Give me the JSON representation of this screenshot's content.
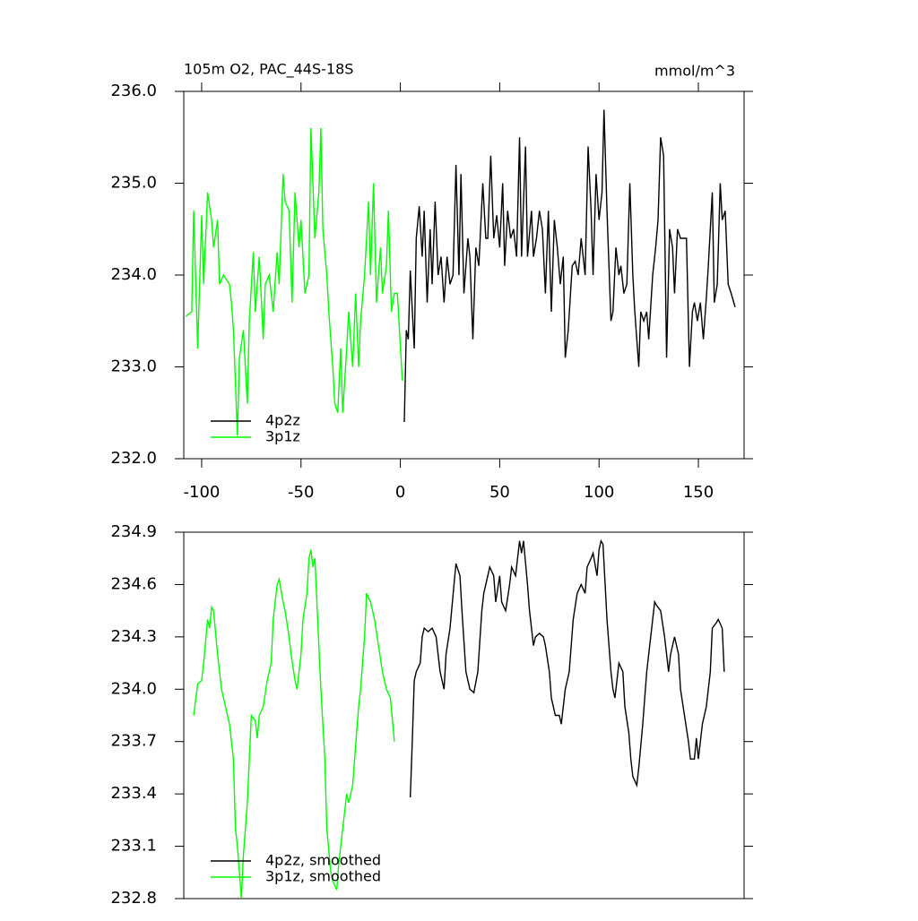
{
  "chart_data": [
    {
      "type": "line",
      "title": "105m O2, PAC_44S-18S",
      "units": "mmol/m^3",
      "xlim": [
        -109,
        173
      ],
      "ylim": [
        232,
        236
      ],
      "xticks": [
        -100,
        -50,
        0,
        50,
        100,
        150
      ],
      "yticks": [
        {
          "value": 232,
          "label": "232.0"
        },
        {
          "value": 233,
          "label": "233.0"
        },
        {
          "value": 234,
          "label": "234.0"
        },
        {
          "value": 235,
          "label": "235.0"
        },
        {
          "value": 236,
          "label": "236.0"
        }
      ],
      "legend": "lower left",
      "series": [
        {
          "name": "4p2z",
          "color": "#000000",
          "x": [
            2,
            3,
            4,
            5,
            7,
            8,
            9.5,
            11,
            12,
            13.5,
            15,
            16,
            17.5,
            19,
            20.5,
            22,
            23.5,
            25,
            26.5,
            28,
            29.5,
            30.5,
            32,
            34,
            35,
            36.5,
            38,
            39.5,
            41.5,
            43,
            44,
            45.5,
            47,
            48.5,
            50,
            51.5,
            52.5,
            54,
            55.5,
            57,
            58.5,
            60,
            61,
            63,
            64,
            66,
            67,
            68.5,
            70,
            71.5,
            73,
            74.5,
            76,
            77.5,
            79,
            80.5,
            82,
            83,
            84.5,
            86.5,
            88,
            89.5,
            91,
            93,
            94.5,
            96,
            97,
            98.5,
            100,
            101.5,
            102.5,
            104,
            106,
            107,
            108.5,
            110,
            111,
            112.5,
            114,
            115.5,
            117,
            118,
            120,
            121,
            122.5,
            124,
            125,
            127,
            128.5,
            129.7,
            131,
            132.5,
            134,
            135.5,
            137,
            138,
            139.5,
            141,
            142.5,
            144,
            145.5,
            147,
            148,
            149.5,
            151,
            152.5,
            154,
            155,
            157,
            158,
            159.5,
            161,
            162,
            163.5,
            165,
            166.5,
            168.5
          ],
          "values": [
            232.4,
            233.4,
            233.3,
            234.05,
            233.2,
            234.4,
            234.75,
            234.2,
            234.7,
            233.7,
            234.5,
            233.9,
            234.8,
            234.0,
            234.2,
            233.7,
            234.2,
            233.9,
            234.0,
            235.2,
            234.0,
            235.1,
            233.8,
            234.4,
            234.2,
            233.3,
            234.3,
            234.1,
            235.0,
            234.4,
            234.4,
            235.3,
            234.4,
            234.65,
            234.3,
            235.0,
            234.1,
            234.7,
            234.4,
            234.5,
            234.2,
            235.5,
            234.2,
            235.4,
            234.2,
            234.7,
            234.2,
            234.4,
            234.7,
            234.5,
            233.8,
            234.7,
            233.6,
            234.6,
            234.3,
            233.9,
            234.2,
            233.1,
            233.4,
            234.1,
            234.15,
            234.0,
            234.4,
            234.0,
            235.4,
            234.7,
            234.0,
            235.1,
            234.6,
            234.9,
            235.8,
            234.7,
            233.5,
            233.6,
            234.3,
            234.0,
            234.1,
            233.8,
            233.9,
            235.0,
            234.0,
            233.6,
            233.0,
            233.6,
            233.5,
            233.6,
            233.3,
            234.0,
            234.3,
            234.6,
            235.5,
            235.3,
            233.1,
            234.5,
            234.3,
            233.8,
            234.5,
            234.4,
            234.4,
            234.4,
            233.0,
            233.6,
            233.7,
            233.5,
            233.7,
            233.3,
            233.75,
            234.1,
            234.9,
            233.7,
            233.9,
            235.0,
            234.6,
            234.7,
            233.9,
            233.8,
            233.65
          ]
        },
        {
          "name": "3p1z",
          "color": "#00ff00",
          "x": [
            -108,
            -105,
            -104,
            -102,
            -100,
            -99,
            -97,
            -95,
            -94,
            -92,
            -91,
            -89,
            -86,
            -85,
            -84,
            -82,
            -81,
            -79,
            -77,
            -76,
            -74,
            -73,
            -71,
            -69,
            -68,
            -66,
            -64,
            -62,
            -61,
            -59,
            -58,
            -56,
            -54.5,
            -53,
            -51,
            -50,
            -48,
            -46,
            -45,
            -43,
            -41,
            -40,
            -39,
            -37,
            -36,
            -34,
            -33,
            -31.5,
            -30,
            -29,
            -27,
            -26,
            -24,
            -22.5,
            -21,
            -20,
            -18,
            -16,
            -15,
            -13.5,
            -12,
            -10,
            -9,
            -7,
            -6,
            -4.5,
            -3,
            -1.5,
            1
          ],
          "values": [
            233.55,
            233.6,
            234.7,
            233.2,
            234.65,
            233.9,
            234.9,
            234.6,
            234.3,
            234.6,
            233.9,
            234.0,
            233.9,
            233.7,
            233.4,
            232.25,
            233.1,
            233.4,
            232.6,
            233.5,
            234.25,
            233.6,
            234.2,
            233.3,
            233.9,
            234.0,
            233.6,
            234.25,
            233.9,
            235.1,
            234.8,
            234.7,
            233.7,
            234.9,
            234.3,
            234.6,
            233.8,
            234.0,
            235.6,
            234.4,
            234.9,
            235.6,
            234.5,
            234.0,
            233.6,
            233.0,
            232.6,
            232.5,
            233.2,
            232.5,
            233.2,
            233.6,
            233.0,
            233.8,
            233.0,
            233.5,
            234.0,
            234.8,
            234.0,
            235.0,
            233.7,
            234.3,
            233.8,
            234.1,
            234.7,
            233.6,
            233.8,
            233.8,
            232.85
          ]
        }
      ]
    },
    {
      "type": "line",
      "xlim": [
        -109,
        173
      ],
      "ylim": [
        232.8,
        234.9
      ],
      "yticks": [
        232.8,
        233.1,
        233.4,
        233.7,
        {
          "value": 234,
          "label": "234.0"
        },
        234.3,
        234.6,
        234.9
      ],
      "legend": "lower left",
      "series": [
        {
          "name": "4p2z, smoothed",
          "color": "#000000",
          "x": [
            5,
            6,
            7,
            8,
            10,
            11,
            12,
            14,
            16,
            18,
            20,
            22,
            23,
            25,
            27,
            28,
            30,
            31,
            33,
            35,
            37,
            39,
            41,
            42,
            44,
            45,
            47,
            48,
            50,
            51,
            53,
            55,
            56,
            58,
            60,
            61,
            62,
            64,
            65,
            67,
            68,
            70,
            72,
            73,
            75,
            76,
            78,
            80,
            81,
            83,
            85,
            87,
            89,
            91,
            93,
            94,
            96,
            97,
            99,
            100,
            101,
            102,
            104,
            106,
            107,
            108,
            110,
            112,
            113,
            115,
            116,
            117,
            119,
            120,
            122,
            124,
            126,
            128,
            129,
            131,
            133,
            135,
            136,
            138,
            140,
            141,
            143,
            145,
            146,
            148,
            149,
            150,
            152,
            154,
            156,
            157,
            159,
            160,
            162,
            163
          ],
          "values": [
            233.38,
            233.7,
            234.05,
            234.1,
            234.15,
            234.3,
            234.35,
            234.33,
            234.35,
            234.3,
            234.1,
            234.0,
            234.2,
            234.35,
            234.6,
            234.72,
            234.65,
            234.45,
            234.1,
            234.0,
            233.98,
            234.1,
            234.45,
            234.55,
            234.65,
            234.7,
            234.65,
            234.5,
            234.65,
            234.5,
            234.45,
            234.6,
            234.7,
            234.65,
            234.85,
            234.78,
            234.85,
            234.6,
            234.45,
            234.25,
            234.3,
            234.32,
            234.3,
            234.25,
            234.1,
            233.95,
            233.85,
            233.85,
            233.8,
            234.0,
            234.1,
            234.4,
            234.55,
            234.6,
            234.55,
            234.7,
            234.75,
            234.78,
            234.65,
            234.8,
            234.85,
            234.83,
            234.4,
            234.1,
            234.0,
            233.95,
            234.15,
            234.1,
            233.9,
            233.75,
            233.6,
            233.5,
            233.45,
            233.55,
            233.8,
            234.1,
            234.3,
            234.5,
            234.48,
            234.45,
            234.3,
            234.1,
            234.2,
            234.3,
            234.2,
            234.0,
            233.85,
            233.7,
            233.6,
            233.6,
            233.72,
            233.6,
            233.8,
            233.9,
            234.1,
            234.35,
            234.38,
            234.4,
            234.35,
            234.1
          ]
        },
        {
          "name": "3p1z, smoothed",
          "color": "#00ff00",
          "x": [
            -104,
            -102,
            -100,
            -99,
            -97,
            -96,
            -95,
            -94,
            -92,
            -90,
            -88,
            -86,
            -84,
            -83,
            -82,
            -80,
            -79,
            -77,
            -76,
            -75,
            -73,
            -72,
            -71,
            -69,
            -67,
            -65,
            -64,
            -62,
            -61,
            -59,
            -58,
            -56,
            -55,
            -53,
            -52,
            -50,
            -49,
            -47,
            -46,
            -45,
            -44,
            -43,
            -42,
            -40,
            -38,
            -37,
            -35,
            -34,
            -32,
            -31,
            -29,
            -27,
            -26,
            -24,
            -23,
            -21,
            -20,
            -18,
            -17,
            -15,
            -13,
            -11,
            -9,
            -7,
            -5,
            -3
          ],
          "values": [
            233.85,
            234.03,
            234.05,
            234.15,
            234.4,
            234.35,
            234.47,
            234.45,
            234.2,
            234.0,
            233.9,
            233.8,
            233.6,
            233.2,
            233.1,
            232.8,
            233.05,
            233.35,
            233.6,
            233.85,
            233.82,
            233.72,
            233.85,
            233.9,
            234.05,
            234.15,
            234.4,
            234.6,
            234.63,
            234.5,
            234.45,
            234.3,
            234.2,
            234.05,
            234.0,
            234.2,
            234.4,
            234.55,
            234.75,
            234.8,
            234.7,
            234.75,
            234.5,
            234.0,
            233.6,
            233.2,
            232.95,
            232.9,
            232.85,
            233.0,
            233.2,
            233.4,
            233.35,
            233.45,
            233.6,
            233.9,
            234.0,
            234.3,
            234.55,
            234.5,
            234.4,
            234.25,
            234.1,
            234.0,
            233.95,
            233.7
          ]
        }
      ]
    }
  ]
}
